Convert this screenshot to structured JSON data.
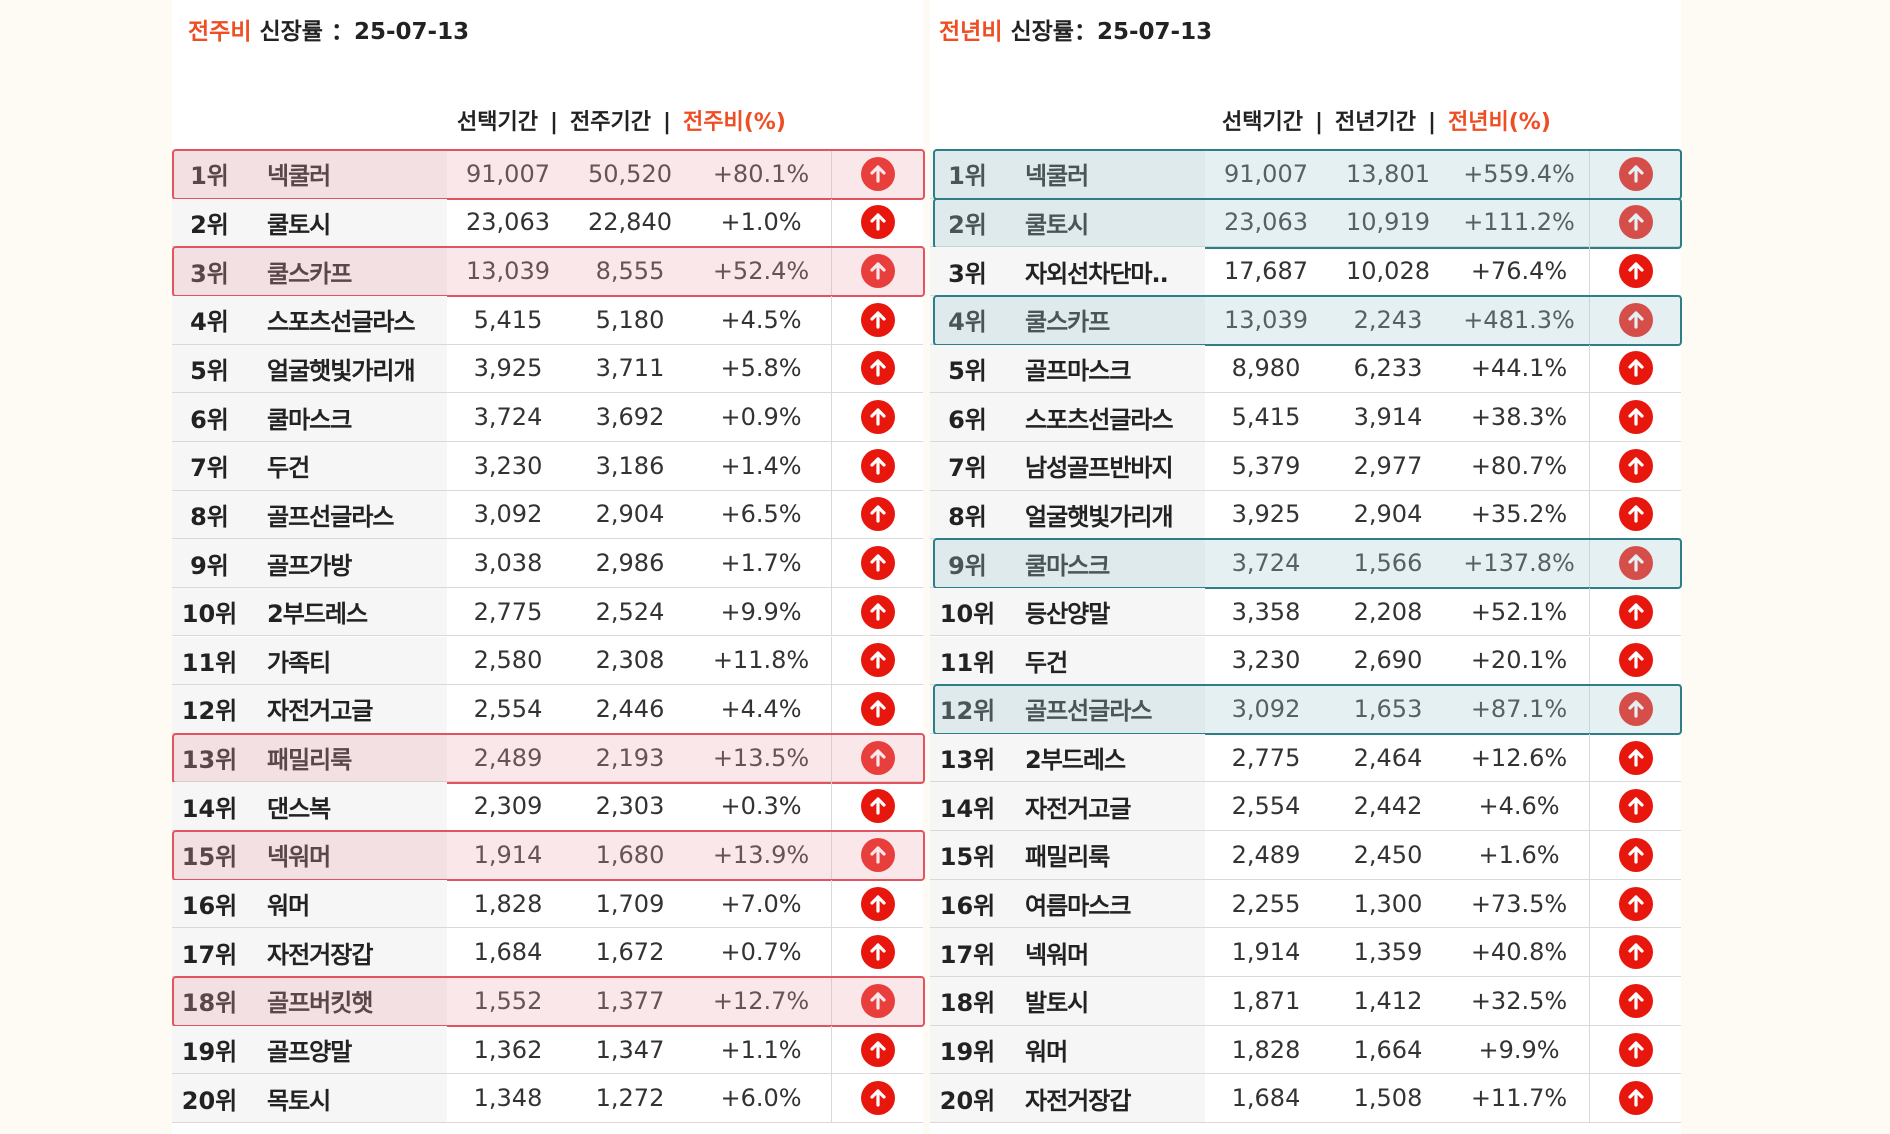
{
  "wow": {
    "title_accent": "전주비",
    "title_rest": " 신장률 ：25-07-13",
    "col_selected": "선택기간",
    "col_compare": "전주기간",
    "col_pct": "전주비(%)",
    "sep": "|",
    "rows": [
      {
        "rank": "1위",
        "name": "넥쿨러",
        "a": "91,007",
        "b": "50,520",
        "p": "+80.1%",
        "hl": true
      },
      {
        "rank": "2위",
        "name": "쿨토시",
        "a": "23,063",
        "b": "22,840",
        "p": "+1.0%",
        "hl": false
      },
      {
        "rank": "3위",
        "name": "쿨스카프",
        "a": "13,039",
        "b": "8,555",
        "p": "+52.4%",
        "hl": true
      },
      {
        "rank": "4위",
        "name": "스포츠선글라스",
        "a": "5,415",
        "b": "5,180",
        "p": "+4.5%",
        "hl": false
      },
      {
        "rank": "5위",
        "name": "얼굴햇빛가리개",
        "a": "3,925",
        "b": "3,711",
        "p": "+5.8%",
        "hl": false
      },
      {
        "rank": "6위",
        "name": "쿨마스크",
        "a": "3,724",
        "b": "3,692",
        "p": "+0.9%",
        "hl": false
      },
      {
        "rank": "7위",
        "name": "두건",
        "a": "3,230",
        "b": "3,186",
        "p": "+1.4%",
        "hl": false
      },
      {
        "rank": "8위",
        "name": "골프선글라스",
        "a": "3,092",
        "b": "2,904",
        "p": "+6.5%",
        "hl": false
      },
      {
        "rank": "9위",
        "name": "골프가방",
        "a": "3,038",
        "b": "2,986",
        "p": "+1.7%",
        "hl": false
      },
      {
        "rank": "10위",
        "name": "2부드레스",
        "a": "2,775",
        "b": "2,524",
        "p": "+9.9%",
        "hl": false
      },
      {
        "rank": "11위",
        "name": "가족티",
        "a": "2,580",
        "b": "2,308",
        "p": "+11.8%",
        "hl": false
      },
      {
        "rank": "12위",
        "name": "자전거고글",
        "a": "2,554",
        "b": "2,446",
        "p": "+4.4%",
        "hl": false
      },
      {
        "rank": "13위",
        "name": "패밀리룩",
        "a": "2,489",
        "b": "2,193",
        "p": "+13.5%",
        "hl": true
      },
      {
        "rank": "14위",
        "name": "댄스복",
        "a": "2,309",
        "b": "2,303",
        "p": "+0.3%",
        "hl": false
      },
      {
        "rank": "15위",
        "name": "넥워머",
        "a": "1,914",
        "b": "1,680",
        "p": "+13.9%",
        "hl": true
      },
      {
        "rank": "16위",
        "name": "워머",
        "a": "1,828",
        "b": "1,709",
        "p": "+7.0%",
        "hl": false
      },
      {
        "rank": "17위",
        "name": "자전거장갑",
        "a": "1,684",
        "b": "1,672",
        "p": "+0.7%",
        "hl": false
      },
      {
        "rank": "18위",
        "name": "골프버킷햇",
        "a": "1,552",
        "b": "1,377",
        "p": "+12.7%",
        "hl": true
      },
      {
        "rank": "19위",
        "name": "골프양말",
        "a": "1,362",
        "b": "1,347",
        "p": "+1.1%",
        "hl": false
      },
      {
        "rank": "20위",
        "name": "목토시",
        "a": "1,348",
        "b": "1,272",
        "p": "+6.0%",
        "hl": false
      }
    ]
  },
  "yoy": {
    "title_accent": "전년비",
    "title_rest": " 신장률：25-07-13",
    "col_selected": "선택기간",
    "col_compare": "전년기간",
    "col_pct": "전년비(%)",
    "sep": "|",
    "rows": [
      {
        "rank": "1위",
        "name": "넥쿨러",
        "a": "91,007",
        "b": "13,801",
        "p": "+559.4%",
        "hl": true
      },
      {
        "rank": "2위",
        "name": "쿨토시",
        "a": "23,063",
        "b": "10,919",
        "p": "+111.2%",
        "hl": true
      },
      {
        "rank": "3위",
        "name": "자외선차단마..",
        "a": "17,687",
        "b": "10,028",
        "p": "+76.4%",
        "hl": false
      },
      {
        "rank": "4위",
        "name": "쿨스카프",
        "a": "13,039",
        "b": "2,243",
        "p": "+481.3%",
        "hl": true
      },
      {
        "rank": "5위",
        "name": "골프마스크",
        "a": "8,980",
        "b": "6,233",
        "p": "+44.1%",
        "hl": false
      },
      {
        "rank": "6위",
        "name": "스포츠선글라스",
        "a": "5,415",
        "b": "3,914",
        "p": "+38.3%",
        "hl": false
      },
      {
        "rank": "7위",
        "name": "남성골프반바지",
        "a": "5,379",
        "b": "2,977",
        "p": "+80.7%",
        "hl": false
      },
      {
        "rank": "8위",
        "name": "얼굴햇빛가리개",
        "a": "3,925",
        "b": "2,904",
        "p": "+35.2%",
        "hl": false
      },
      {
        "rank": "9위",
        "name": "쿨마스크",
        "a": "3,724",
        "b": "1,566",
        "p": "+137.8%",
        "hl": true
      },
      {
        "rank": "10위",
        "name": "등산양말",
        "a": "3,358",
        "b": "2,208",
        "p": "+52.1%",
        "hl": false
      },
      {
        "rank": "11위",
        "name": "두건",
        "a": "3,230",
        "b": "2,690",
        "p": "+20.1%",
        "hl": false
      },
      {
        "rank": "12위",
        "name": "골프선글라스",
        "a": "3,092",
        "b": "1,653",
        "p": "+87.1%",
        "hl": true
      },
      {
        "rank": "13위",
        "name": "2부드레스",
        "a": "2,775",
        "b": "2,464",
        "p": "+12.6%",
        "hl": false
      },
      {
        "rank": "14위",
        "name": "자전거고글",
        "a": "2,554",
        "b": "2,442",
        "p": "+4.6%",
        "hl": false
      },
      {
        "rank": "15위",
        "name": "패밀리룩",
        "a": "2,489",
        "b": "2,450",
        "p": "+1.6%",
        "hl": false
      },
      {
        "rank": "16위",
        "name": "여름마스크",
        "a": "2,255",
        "b": "1,300",
        "p": "+73.5%",
        "hl": false
      },
      {
        "rank": "17위",
        "name": "넥워머",
        "a": "1,914",
        "b": "1,359",
        "p": "+40.8%",
        "hl": false
      },
      {
        "rank": "18위",
        "name": "발토시",
        "a": "1,871",
        "b": "1,412",
        "p": "+32.5%",
        "hl": false
      },
      {
        "rank": "19위",
        "name": "워머",
        "a": "1,828",
        "b": "1,664",
        "p": "+9.9%",
        "hl": false
      },
      {
        "rank": "20위",
        "name": "자전거장갑",
        "a": "1,684",
        "b": "1,508",
        "p": "+11.7%",
        "hl": false
      }
    ]
  },
  "icon": {
    "name": "arrow-up-circle-icon",
    "color": "#e8170e"
  },
  "highlight_colors": {
    "wow": "#e2545f",
    "yoy": "#2e7e87"
  }
}
